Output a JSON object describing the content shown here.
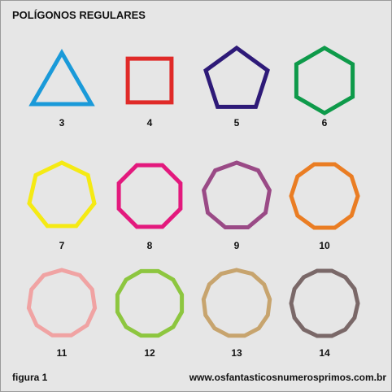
{
  "title": "POLÍGONOS REGULARES",
  "caption": "figura 1",
  "website": "www.osfantasticosnumerosprimos.com.br",
  "polygons": [
    {
      "sides": 3,
      "label": "3",
      "color": "#1a9ad9"
    },
    {
      "sides": 4,
      "label": "4",
      "color": "#e02a28"
    },
    {
      "sides": 5,
      "label": "5",
      "color": "#2e1a78"
    },
    {
      "sides": 6,
      "label": "6",
      "color": "#0e9a4a"
    },
    {
      "sides": 7,
      "label": "7",
      "color": "#f5ea14"
    },
    {
      "sides": 8,
      "label": "8",
      "color": "#e3197d"
    },
    {
      "sides": 9,
      "label": "9",
      "color": "#9a4a86"
    },
    {
      "sides": 10,
      "label": "10",
      "color": "#ea7d23"
    },
    {
      "sides": 11,
      "label": "11",
      "color": "#f0a3a3"
    },
    {
      "sides": 12,
      "label": "12",
      "color": "#8dc63f"
    },
    {
      "sides": 13,
      "label": "13",
      "color": "#c7a46e"
    },
    {
      "sides": 14,
      "label": "14",
      "color": "#7a6868"
    }
  ]
}
